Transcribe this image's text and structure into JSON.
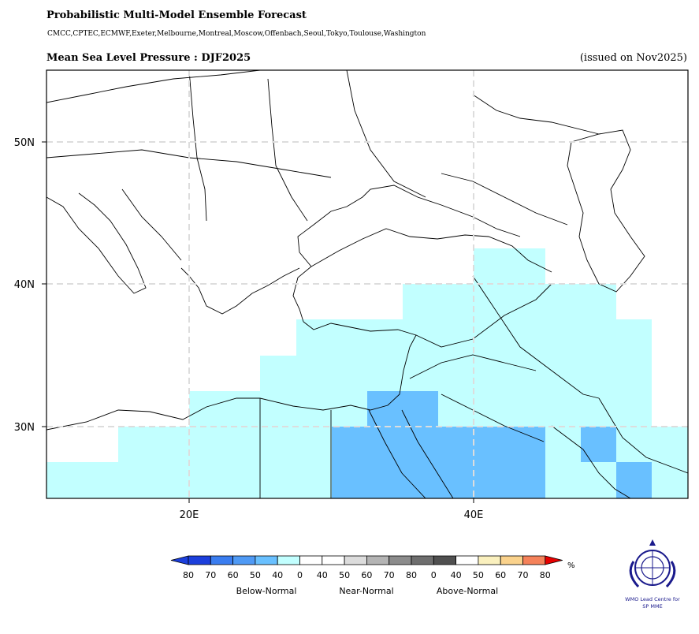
{
  "header": {
    "title": "Probabilistic Multi-Model Ensemble Forecast",
    "models": "CMCC,CPTEC,ECMWF,Exeter,Melbourne,Montreal,Moscow,Offenbach,Seoul,Tokyo,Toulouse,Washington",
    "subtitle": "Mean Sea Level Pressure : DJF2025",
    "issued": "(issued on Nov2025)"
  },
  "map": {
    "lat_ticks": [
      "50N",
      "40N",
      "30N"
    ],
    "lon_ticks": [
      "20E",
      "40E"
    ],
    "extent": {
      "lon": [
        10,
        55
      ],
      "lat": [
        25,
        55
      ]
    },
    "grid": "dashed"
  },
  "legend": {
    "bins": [
      "80",
      "70",
      "60",
      "50",
      "40",
      "0",
      "40",
      "50",
      "60",
      "70",
      "80",
      "0",
      "40",
      "50",
      "60",
      "70",
      "80"
    ],
    "unit": "%",
    "groups": [
      "Below-Normal",
      "Near-Normal",
      "Above-Normal"
    ],
    "colors": {
      "below": [
        "#1c3fdc",
        "#3a7df0",
        "#4f9af5",
        "#69c0ff",
        "#c2ffff"
      ],
      "white": "#ffffff",
      "near": [
        "#dcdcdc",
        "#b4b4b4",
        "#8c8c8c",
        "#6e6e6e",
        "#505050"
      ],
      "above": [
        "#faf0be",
        "#fad28c",
        "#f5825a",
        "#e60000",
        "#c80000"
      ]
    }
  },
  "logo": {
    "line1": "WMO Lead Centre for",
    "line2": "SP MME"
  }
}
